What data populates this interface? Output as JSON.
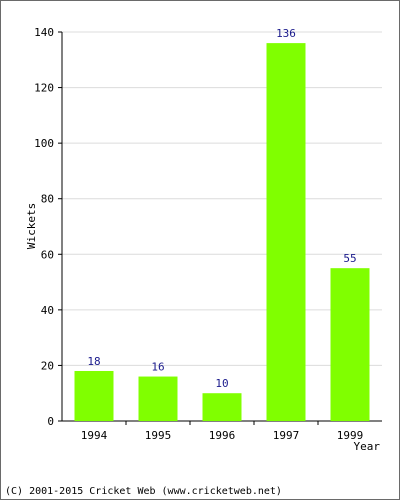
{
  "chart_data": {
    "type": "bar",
    "categories": [
      "1994",
      "1995",
      "1996",
      "1997",
      "1999"
    ],
    "values": [
      18,
      16,
      10,
      136,
      55
    ],
    "title": "",
    "xlabel": "Year",
    "ylabel": "Wickets",
    "ylim": [
      0,
      140
    ],
    "yticks": [
      0,
      20,
      40,
      60,
      80,
      100,
      120,
      140
    ],
    "grid": true,
    "bar_color": "#80ff00",
    "data_label_color": "#1a1a8c"
  },
  "footer": {
    "copyright": "(C) 2001-2015 Cricket Web (www.cricketweb.net)"
  }
}
